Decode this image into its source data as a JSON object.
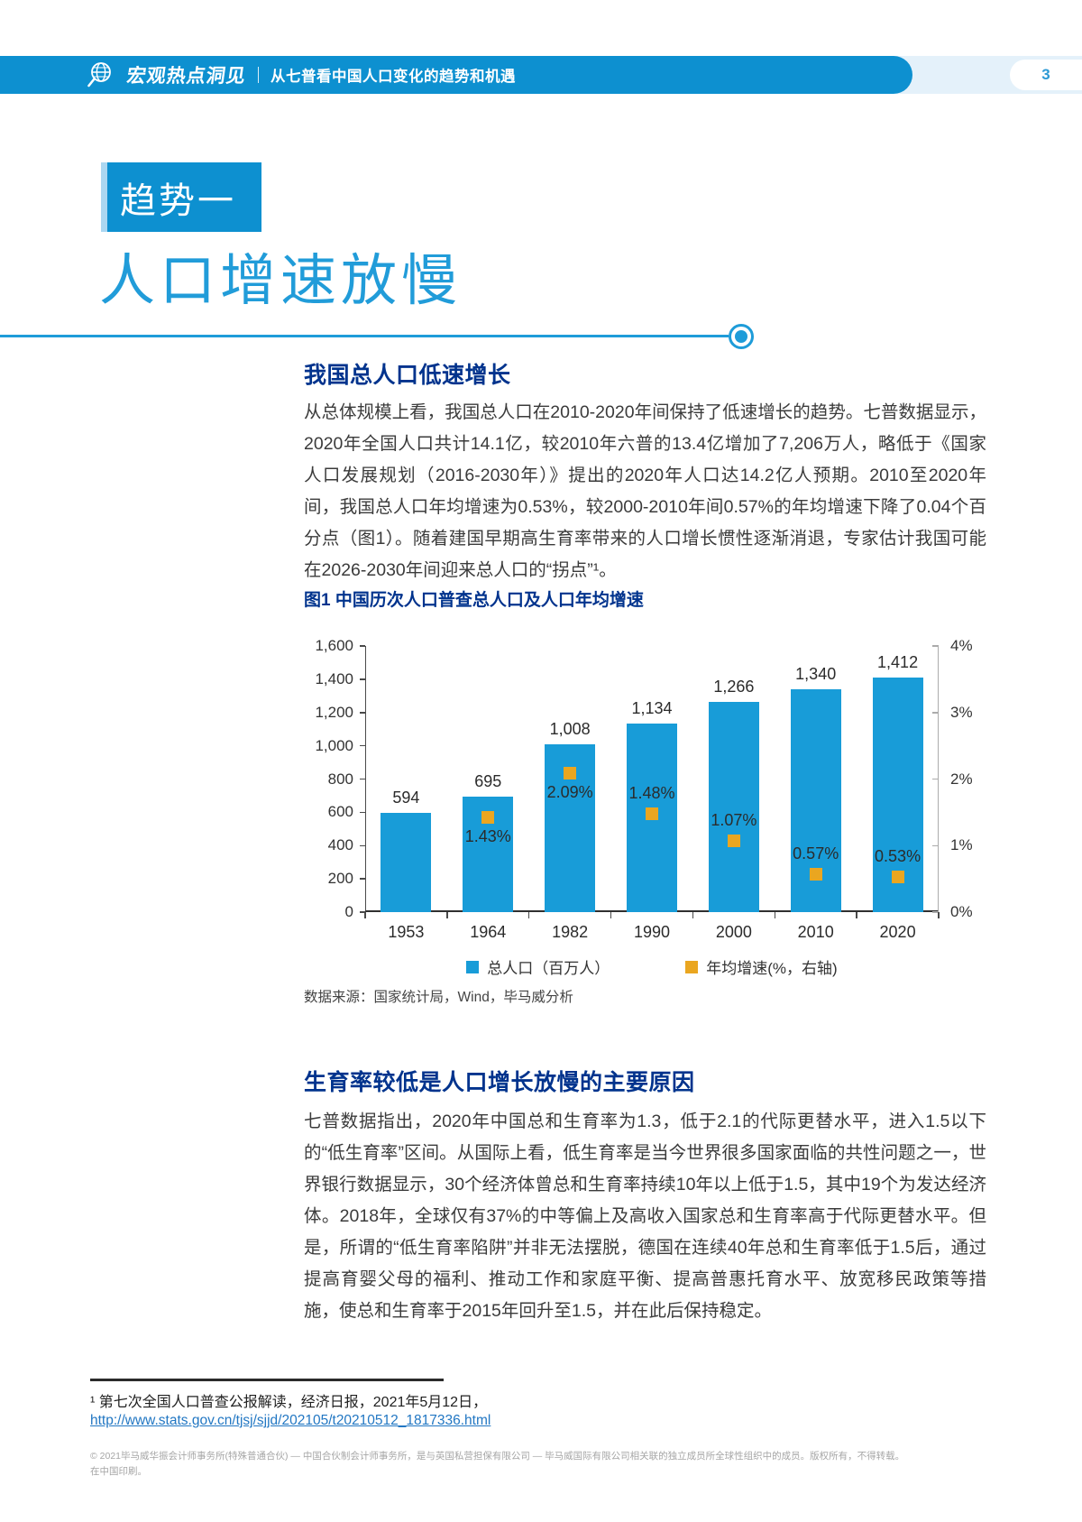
{
  "header": {
    "brand": "宏观热点洞见",
    "doc_title": "从七普看中国人口变化的趋势和机遇",
    "page_number": "3"
  },
  "trend": {
    "badge": "趋势一",
    "title": "人口增速放慢"
  },
  "section1": {
    "heading": "我国总人口低速增长",
    "paragraph": "从总体规模上看，我国总人口在2010-2020年间保持了低速增长的趋势。七普数据显示，2020年全国人口共计14.1亿，较2010年六普的13.4亿增加了7,206万人，略低于《国家人口发展规划（2016-2030年）》提出的2020年人口达14.2亿人预期。2010至2020年间，我国总人口年均增速为0.53%，较2000-2010年间0.57%的年均增速下降了0.04个百分点（图1）。随着建国早期高生育率带来的人口增长惯性逐渐消退，专家估计我国可能在2026-2030年间迎来总人口的“拐点”¹。"
  },
  "chart_data": {
    "type": "bar",
    "title": "图1 中国历次人口普查总人口及人口年均增速",
    "categories": [
      "1953",
      "1964",
      "1982",
      "1990",
      "2000",
      "2010",
      "2020"
    ],
    "series": [
      {
        "name": "总人口（百万人）",
        "kind": "bar",
        "axis": "left",
        "color": "#189CD8",
        "values": [
          594,
          695,
          1008,
          1134,
          1266,
          1340,
          1412
        ],
        "value_labels": [
          "594",
          "695",
          "1,008",
          "1,134",
          "1,266",
          "1,340",
          "1,412"
        ]
      },
      {
        "name": "年均增速(%，右轴)",
        "kind": "scatter-square",
        "axis": "right",
        "color": "#EAA620",
        "values": [
          null,
          1.43,
          2.09,
          1.48,
          1.07,
          0.57,
          0.53
        ],
        "value_labels": [
          "",
          "1.43%",
          "2.09%",
          "1.48%",
          "1.07%",
          "0.57%",
          "0.53%"
        ],
        "label_positions": [
          "",
          "below",
          "below",
          "above",
          "above",
          "above",
          "above"
        ]
      }
    ],
    "left_axis": {
      "min": 0,
      "max": 1600,
      "step": 200,
      "tick_labels": [
        "0",
        "200",
        "400",
        "600",
        "800",
        "1,000",
        "1,200",
        "1,400",
        "1,600"
      ]
    },
    "right_axis": {
      "min": 0,
      "max": 4,
      "step": 1,
      "tick_labels": [
        "0%",
        "1%",
        "2%",
        "3%",
        "4%"
      ]
    },
    "grid": false,
    "legend_position": "bottom",
    "source": "数据来源：国家统计局，Wind，毕马威分析"
  },
  "section2": {
    "heading": "生育率较低是人口增长放慢的主要原因",
    "paragraph": "七普数据指出，2020年中国总和生育率为1.3，低于2.1的代际更替水平，进入1.5以下的“低生育率”区间。从国际上看，低生育率是当今世界很多国家面临的共性问题之一，世界银行数据显示，30个经济体曾总和生育率持续10年以上低于1.5，其中19个为发达经济体。2018年，全球仅有37%的中等偏上及高收入国家总和生育率高于代际更替水平。但是，所谓的“低生育率陷阱”并非无法摆脱，德国在连续40年总和生育率低于1.5后，通过提高育婴父母的福利、推动工作和家庭平衡、提高普惠托育水平、放宽移民政策等措施，使总和生育率于2015年回升至1.5，并在此后保持稳定。"
  },
  "footnote": {
    "text": "¹ 第七次全国人口普查公报解读，经济日报，2021年5月12日，",
    "link": "http://www.stats.gov.cn/tjsj/sjjd/202105/t20210512_1817336.html"
  },
  "footer": {
    "line1": "© 2021毕马威华振会计师事务所(特殊普通合伙) — 中国合伙制会计师事务所，是与英国私营担保有限公司 — 毕马威国际有限公司相关联的独立成员所全球性组织中的成员。版权所有，不得转载。",
    "line2": "在中国印刷。"
  },
  "colors": {
    "header_blue": "#0D90D0",
    "light_blue_strip": "#E4F1FA",
    "accent_blue": "#219CD9",
    "navy_heading": "#00338D",
    "bar_blue": "#189CD8",
    "marker_yellow": "#EAA620",
    "link_blue": "#2277C3"
  }
}
